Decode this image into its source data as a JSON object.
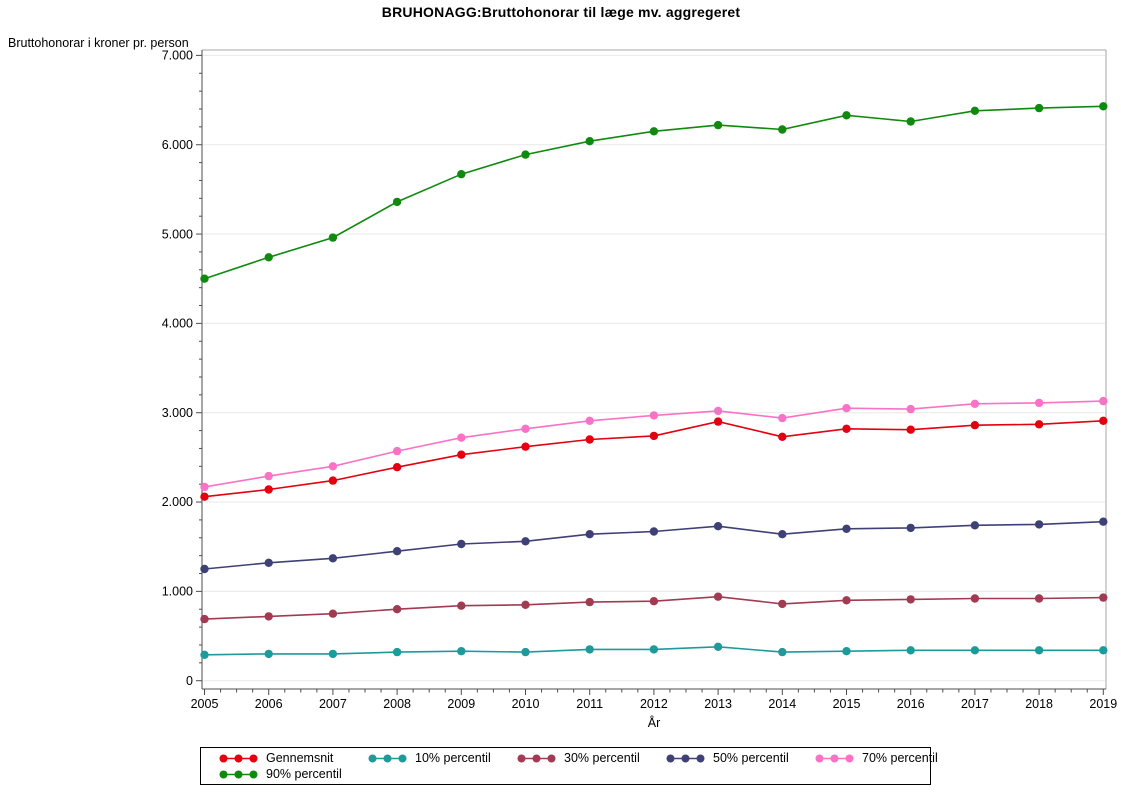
{
  "title": "BRUHONAGG:Bruttohonorar til læge mv. aggregeret",
  "chart_data": {
    "type": "line",
    "title": "BRUHONAGG:Bruttohonorar til læge mv. aggregeret",
    "ylabel": "Bruttohonorar i kroner pr. person",
    "xlabel": "År",
    "x": [
      2005,
      2006,
      2007,
      2008,
      2009,
      2010,
      2011,
      2012,
      2013,
      2014,
      2015,
      2016,
      2017,
      2018,
      2019
    ],
    "series": [
      {
        "name": "Gennemsnit",
        "color": "#e3000f",
        "values": [
          2060,
          2140,
          2240,
          2390,
          2530,
          2620,
          2700,
          2740,
          2900,
          2730,
          2820,
          2810,
          2860,
          2870,
          2910
        ]
      },
      {
        "name": "10% percentil",
        "color": "#1f9a9a",
        "values": [
          290,
          300,
          300,
          320,
          330,
          320,
          350,
          350,
          380,
          320,
          330,
          340,
          340,
          340,
          340
        ]
      },
      {
        "name": "30% percentil",
        "color": "#a23a52",
        "values": [
          690,
          720,
          750,
          800,
          840,
          850,
          880,
          890,
          940,
          860,
          900,
          910,
          920,
          920,
          930
        ]
      },
      {
        "name": "50% percentil",
        "color": "#3f4075",
        "values": [
          1250,
          1320,
          1370,
          1450,
          1530,
          1560,
          1640,
          1670,
          1730,
          1640,
          1700,
          1710,
          1740,
          1750,
          1780
        ]
      },
      {
        "name": "70% percentil",
        "color": "#f972c5",
        "values": [
          2170,
          2290,
          2400,
          2570,
          2720,
          2820,
          2910,
          2970,
          3020,
          2940,
          3050,
          3040,
          3100,
          3110,
          3130
        ]
      },
      {
        "name": "90% percentil",
        "color": "#0f8a0f",
        "values": [
          4500,
          4740,
          4960,
          5360,
          5670,
          5890,
          6040,
          6150,
          6220,
          6170,
          6330,
          6260,
          6380,
          6410,
          6430
        ]
      }
    ],
    "ylim": [
      0,
      7000
    ],
    "ytick_interval": 1000,
    "ytick_labels": [
      "0",
      "1.000",
      "2.000",
      "3.000",
      "4.000",
      "5.000",
      "6.000",
      "7.000"
    ],
    "grid": true,
    "legend_position": "bottom",
    "legend_rows": [
      [
        0,
        1,
        2,
        3,
        4
      ],
      [
        5
      ]
    ]
  },
  "style": {
    "grid_color": "#e8e8e8",
    "axis_color": "#4d4d4d",
    "frame_color": "#a6a6a6",
    "text_color": "#000000"
  }
}
